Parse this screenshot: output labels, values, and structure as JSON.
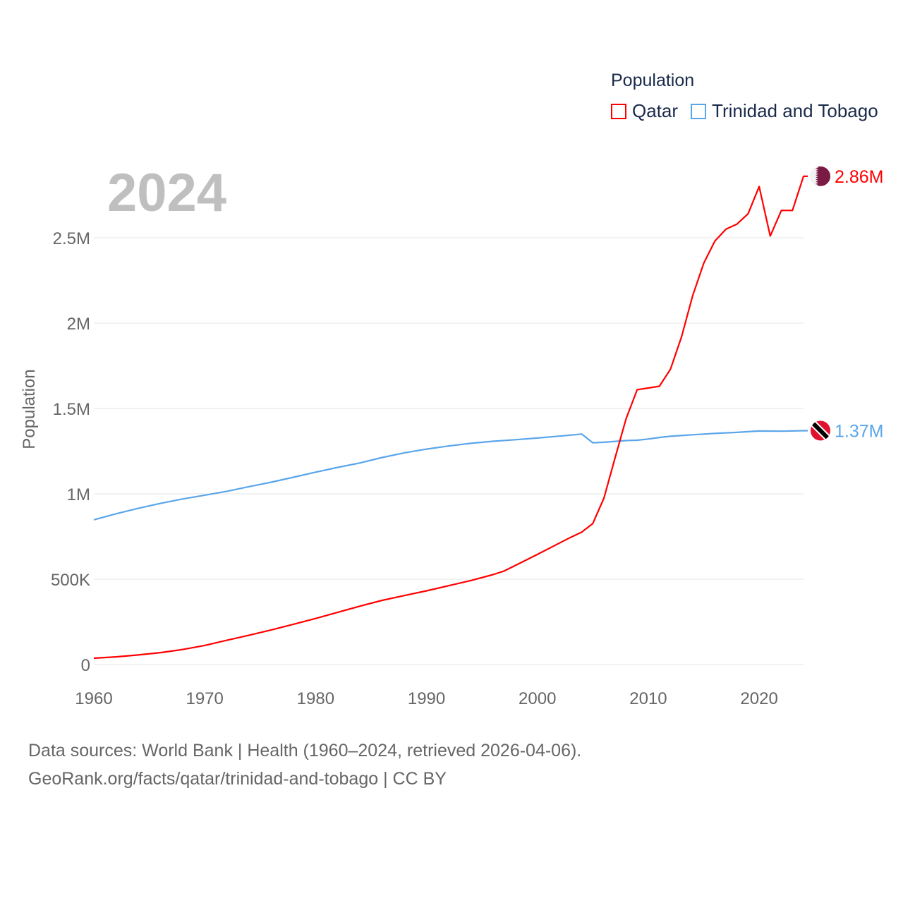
{
  "chart_data": {
    "type": "line",
    "title": "",
    "year_label": "2024",
    "legend_title": "Population",
    "legend_placement": "top-right",
    "xlabel": "",
    "ylabel": "Population",
    "xlim": [
      1960,
      2024
    ],
    "ylim": [
      0,
      2900000
    ],
    "grid": true,
    "x_ticks": [
      1960,
      1970,
      1980,
      1990,
      2000,
      2010,
      2020
    ],
    "x_tick_labels": [
      "1960",
      "1970",
      "1980",
      "1990",
      "2000",
      "2010",
      "2020"
    ],
    "y_ticks": [
      0,
      500000,
      1000000,
      1500000,
      2000000,
      2500000
    ],
    "y_tick_labels": [
      "0",
      "500K",
      "1M",
      "1.5M",
      "2M",
      "2.5M"
    ],
    "series": [
      {
        "name": "Qatar",
        "color": "#ff0000",
        "end_label": "2.86M",
        "flag": "qatar-flag",
        "x": [
          1960,
          1962,
          1964,
          1966,
          1968,
          1970,
          1972,
          1974,
          1976,
          1978,
          1980,
          1982,
          1984,
          1986,
          1988,
          1990,
          1992,
          1994,
          1996,
          1997,
          1998,
          2000,
          2002,
          2003,
          2004,
          2005,
          2006,
          2007,
          2008,
          2009,
          2010,
          2011,
          2012,
          2013,
          2014,
          2015,
          2016,
          2017,
          2018,
          2019,
          2020,
          2021,
          2022,
          2023,
          2024
        ],
        "y": [
          37000,
          45000,
          56000,
          70000,
          88000,
          112000,
          142000,
          172000,
          203000,
          236000,
          270000,
          306000,
          342000,
          376000,
          404000,
          432000,
          462000,
          492000,
          527000,
          548000,
          580000,
          645000,
          712000,
          745000,
          776000,
          826000,
          975000,
          1210000,
          1440000,
          1610000,
          1620000,
          1630000,
          1730000,
          1920000,
          2160000,
          2350000,
          2480000,
          2550000,
          2580000,
          2640000,
          2800000,
          2510000,
          2660000,
          2660000,
          2860000
        ]
      },
      {
        "name": "Trinidad and Tobago",
        "color": "#5aa5ea",
        "end_label": "1.37M",
        "flag": "trinidad-and-tobago-flag",
        "x": [
          1960,
          1962,
          1964,
          1966,
          1968,
          1970,
          1972,
          1974,
          1976,
          1978,
          1980,
          1982,
          1984,
          1986,
          1988,
          1990,
          1992,
          1994,
          1996,
          1998,
          2000,
          2002,
          2004,
          2005,
          2006,
          2008,
          2009,
          2010,
          2011,
          2012,
          2014,
          2016,
          2018,
          2020,
          2022,
          2024
        ],
        "y": [
          848000,
          883000,
          915000,
          944000,
          970000,
          992000,
          1015000,
          1042000,
          1068000,
          1097000,
          1127000,
          1155000,
          1181000,
          1213000,
          1240000,
          1262000,
          1280000,
          1296000,
          1308000,
          1317000,
          1327000,
          1338000,
          1350000,
          1299000,
          1302000,
          1312000,
          1314000,
          1321000,
          1330000,
          1337000,
          1346000,
          1354000,
          1360000,
          1368000,
          1367000,
          1370000
        ]
      }
    ],
    "footer_lines": [
      "Data sources: World Bank | Health (1960–2024, retrieved 2026-04-06).",
      "GeoRank.org/facts/qatar/trinidad-and-tobago | CC BY"
    ]
  }
}
